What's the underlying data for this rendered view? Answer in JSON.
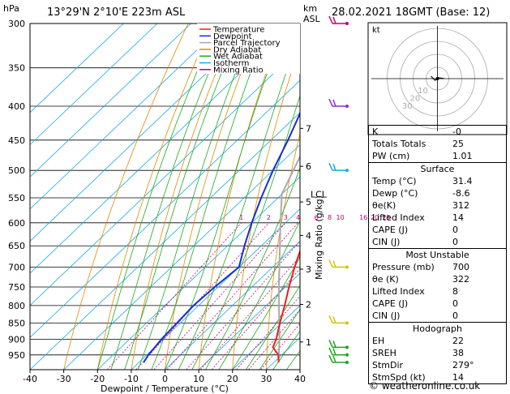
{
  "header": {
    "location": "13°29'N  2°10'E  223m  ASL",
    "datetime": "28.02.2021  18GMT  (Base: 12)",
    "hpa_label": "hPa",
    "km_label": "km",
    "asl_label": "ASL",
    "mixing_ratio_label": "Mixing Ratio (g/kg)",
    "lcl_label": "LCL"
  },
  "chart_data": {
    "type": "line",
    "title": "",
    "xlabel": "Dewpoint / Temperature (°C)",
    "ylabel": "hPa",
    "x_ticks": [
      -40,
      -30,
      -20,
      -10,
      0,
      10,
      20,
      30,
      40
    ],
    "pressure_levels": [
      300,
      350,
      400,
      450,
      500,
      550,
      600,
      650,
      700,
      750,
      800,
      850,
      900,
      950
    ],
    "km_ticks": [
      {
        "label": "1",
        "p": 908
      },
      {
        "label": "2",
        "p": 797
      },
      {
        "label": "3",
        "p": 705
      },
      {
        "label": "4",
        "p": 627
      },
      {
        "label": "5",
        "p": 558
      },
      {
        "label": "6",
        "p": 493
      },
      {
        "label": "7",
        "p": 432
      }
    ],
    "lcl_p": 543,
    "mixing_ratio_ticks": [
      "1",
      "2",
      "3",
      "4",
      "6",
      "8",
      "10",
      "16",
      "20",
      "25"
    ],
    "mixing_ratio_values": [
      1,
      2,
      3,
      4,
      6,
      8,
      10,
      16,
      20,
      25
    ],
    "legend": [
      {
        "name": "Temperature",
        "color": "#e8201e"
      },
      {
        "name": "Dewpoint",
        "color": "#1a2fd0"
      },
      {
        "name": "Parcel Trajectory",
        "color": "#aaaaaa"
      },
      {
        "name": "Dry Adiabat",
        "color": "#e08a00"
      },
      {
        "name": "Wet Adiabat",
        "color": "#1ca81c"
      },
      {
        "name": "Isotherm",
        "color": "#19a9e1"
      },
      {
        "name": "Mixing Ratio",
        "color": "#c0007c"
      }
    ],
    "temperature": {
      "p": [
        975,
        950,
        925,
        900,
        850,
        800,
        750,
        700,
        650,
        600,
        550,
        500,
        450,
        400,
        350,
        300
      ],
      "t": [
        31.4,
        29.0,
        25.0,
        23.5,
        19.5,
        15.5,
        11.0,
        6.5,
        2.0,
        -2.5,
        -7.0,
        -12.0,
        -17.0,
        -22.5,
        -30.0,
        -38.0
      ]
    },
    "dewpoint": {
      "p": [
        975,
        950,
        925,
        900,
        850,
        800,
        750,
        700,
        650,
        600,
        550,
        500,
        450,
        400,
        350,
        300
      ],
      "t": [
        -8.6,
        -9.5,
        -10.0,
        -10.5,
        -11.0,
        -11.5,
        -11.0,
        -10.0,
        -15.0,
        -20.0,
        -25.0,
        -30.0,
        -35.0,
        -41.0,
        -48.0,
        -56.0
      ]
    },
    "parcel": {
      "p": [
        975,
        900,
        850,
        800,
        750,
        700,
        650,
        600,
        543,
        500,
        450,
        400,
        350,
        300
      ],
      "t": [
        31.4,
        24.5,
        19.3,
        13.8,
        8.0,
        2.0,
        -4.5,
        -11.5,
        -20.0,
        -24.0,
        -29.0,
        -35.0,
        -42.0,
        -50.0
      ]
    },
    "wind_barb_p": [
      300,
      400,
      500,
      700,
      850,
      925,
      950,
      975
    ]
  },
  "hodograph": {
    "label": "kt",
    "ring_labels": [
      "10",
      "20",
      "30"
    ]
  },
  "indices": {
    "top": [
      {
        "label": "K",
        "value": "-0"
      },
      {
        "label": "Totals Totals",
        "value": "25"
      },
      {
        "label": "PW (cm)",
        "value": "1.01"
      }
    ],
    "surface": {
      "title": "Surface",
      "rows": [
        {
          "label": "Temp (°C)",
          "value": "31.4"
        },
        {
          "label": "Dewp (°C)",
          "value": "-8.6"
        },
        {
          "label": "θe(K)",
          "value": "312"
        },
        {
          "label": "Lifted Index",
          "value": "14"
        },
        {
          "label": "CAPE (J)",
          "value": "0"
        },
        {
          "label": "CIN (J)",
          "value": "0"
        }
      ]
    },
    "most_unstable": {
      "title": "Most Unstable",
      "rows": [
        {
          "label": "Pressure (mb)",
          "value": "700"
        },
        {
          "label": "θe (K)",
          "value": "322"
        },
        {
          "label": "Lifted Index",
          "value": "8"
        },
        {
          "label": "CAPE (J)",
          "value": "0"
        },
        {
          "label": "CIN (J)",
          "value": "0"
        }
      ]
    },
    "hodograph": {
      "title": "Hodograph",
      "rows": [
        {
          "label": "EH",
          "value": "22"
        },
        {
          "label": "SREH",
          "value": "38"
        },
        {
          "label": "StmDir",
          "value": "279°"
        },
        {
          "label": "StmSpd (kt)",
          "value": "14"
        }
      ]
    }
  },
  "copyright": "© weatheronline.co.uk"
}
